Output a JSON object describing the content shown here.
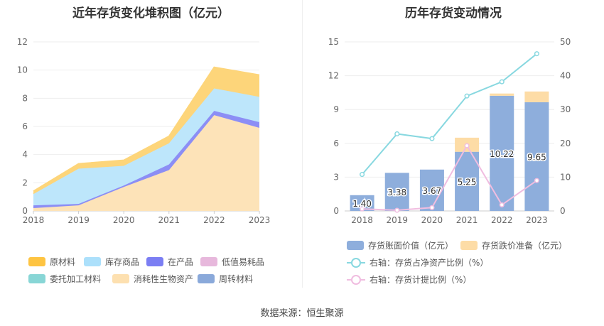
{
  "source_label": "数据来源：恒生聚源",
  "chart_data": [
    {
      "type": "area",
      "stacked": true,
      "title": "近年存货变化堆积图（亿元）",
      "x": [
        "2018",
        "2019",
        "2020",
        "2021",
        "2022",
        "2023"
      ],
      "ylim": [
        0,
        12
      ],
      "yticks": [
        "0",
        "2",
        "4",
        "6",
        "8",
        "10",
        "12"
      ],
      "series": [
        {
          "name": "消耗性生物资产",
          "color": "#fde3b8",
          "values": [
            0.2,
            0.4,
            1.7,
            2.9,
            6.8,
            5.9
          ]
        },
        {
          "name": "在产品",
          "color": "#8c8ef5",
          "values": [
            0.2,
            0.1,
            0.1,
            0.4,
            0.3,
            0.4
          ]
        },
        {
          "name": "库存商品",
          "color": "#bde6fb",
          "values": [
            0.8,
            2.5,
            1.4,
            1.5,
            1.6,
            1.8
          ]
        },
        {
          "name": "原材料",
          "color": "#fdd57a",
          "values": [
            0.2,
            0.35,
            0.4,
            0.5,
            1.5,
            1.55
          ]
        }
      ],
      "legend": [
        {
          "name": "原材料",
          "color": "#fec442"
        },
        {
          "name": "库存商品",
          "color": "#ace0fb"
        },
        {
          "name": "在产品",
          "color": "#7b7ef3"
        },
        {
          "name": "低值易耗品",
          "color": "#e7b8dc"
        },
        {
          "name": "委托加工材料",
          "color": "#88d6d6"
        },
        {
          "name": "消耗性生物资产",
          "color": "#fde0b0"
        },
        {
          "name": "周转材料",
          "color": "#8aa9da"
        }
      ]
    },
    {
      "type": "bar+line",
      "title": "历年存货变动情况",
      "x": [
        "2018",
        "2019",
        "2020",
        "2021",
        "2022",
        "2023"
      ],
      "ylim_left": [
        0,
        15
      ],
      "yticks_left": [
        "0",
        "3",
        "6",
        "9",
        "12",
        "15"
      ],
      "ylim_right": [
        0,
        50
      ],
      "yticks_right": [
        "0",
        "10",
        "20",
        "30",
        "40",
        "50"
      ],
      "bars_book_value": {
        "name": "存货账面价值（亿元）",
        "color": "#8eaedc",
        "values": [
          1.4,
          3.38,
          3.67,
          5.25,
          10.22,
          9.65
        ],
        "labels": [
          "1.40",
          "3.38",
          "3.67",
          "5.25",
          "10.22",
          "9.65"
        ]
      },
      "bars_provision": {
        "name": "存货跌价准备（亿元）",
        "color": "#fddca6",
        "values": [
          0,
          0,
          0,
          1.25,
          0.2,
          0.95
        ]
      },
      "line_ratio": {
        "name": "右轴：存货占净资产比例（%）",
        "color": "#88d8e0",
        "values": [
          10.8,
          22.8,
          21.4,
          34.0,
          38.2,
          46.5
        ]
      },
      "line_provision_ratio": {
        "name": "右轴：存货计提比例（%）",
        "color": "#f0bde0",
        "values": [
          0.6,
          0.2,
          1.0,
          19.3,
          1.8,
          9.0
        ]
      }
    }
  ]
}
